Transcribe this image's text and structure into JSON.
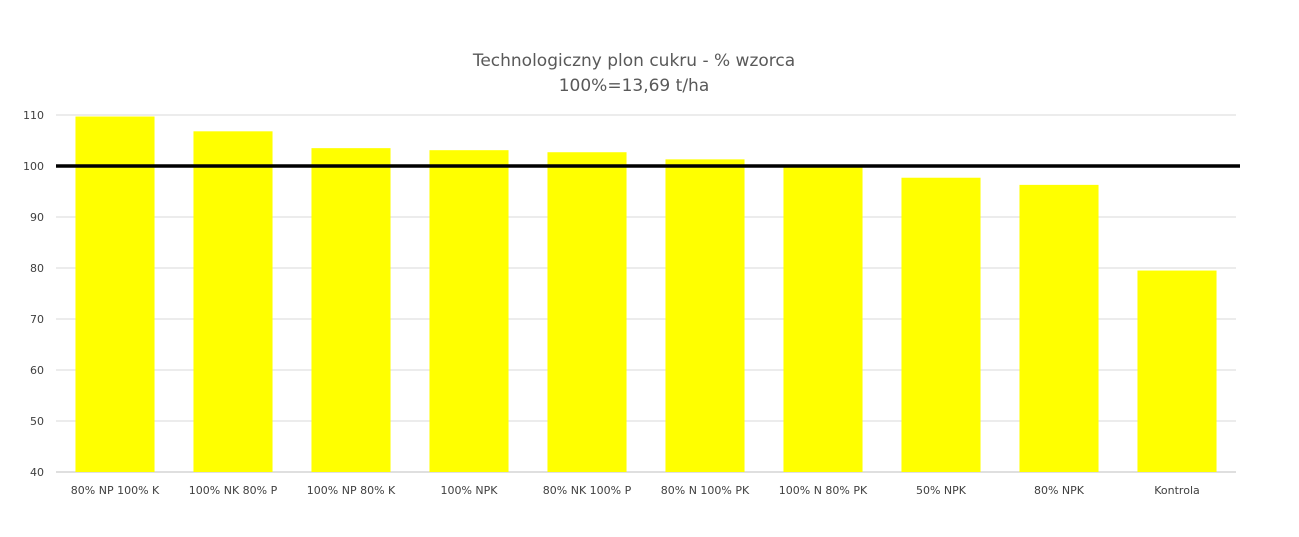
{
  "chart_data": {
    "type": "bar",
    "title": "Technologiczny plon cukru - % wzorca",
    "subtitle": "100%=13,69 t/ha",
    "xlabel": "",
    "ylabel": "",
    "categories": [
      "80% NP 100% K",
      "100% NK 80% P",
      "100% NP 80% K",
      "100% NPK",
      "80% NK 100% P",
      "80% N 100% PK",
      "100% N 80% PK",
      "50% NPK",
      "80% NPK",
      "Kontrola"
    ],
    "values": [
      109.7,
      106.8,
      103.5,
      103.1,
      102.7,
      101.3,
      100.2,
      97.7,
      96.3,
      79.5
    ],
    "ylim": [
      40,
      110
    ],
    "yticks": [
      40,
      50,
      60,
      70,
      80,
      90,
      100,
      110
    ],
    "reference_line": 100,
    "grid": true,
    "legend": "none",
    "colors": {
      "bar": "#FFFF00",
      "reference_line": "#000000",
      "grid": "#d9d9d9",
      "axis": "#bfbfbf",
      "title": "#595959"
    }
  }
}
